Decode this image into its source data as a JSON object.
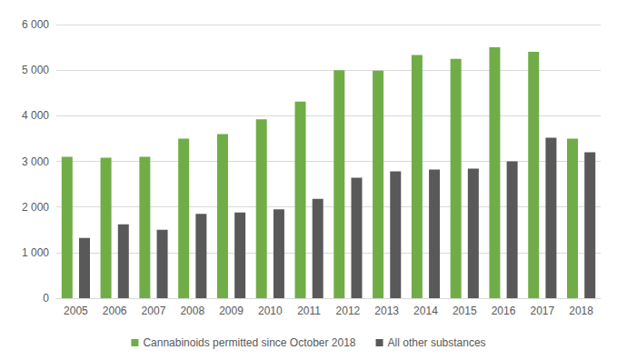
{
  "chart_data": {
    "type": "bar",
    "categories": [
      "2005",
      "2006",
      "2007",
      "2008",
      "2009",
      "2010",
      "2011",
      "2012",
      "2013",
      "2014",
      "2015",
      "2016",
      "2017",
      "2018"
    ],
    "series": [
      {
        "name": "Cannabinoids permitted since October 2018",
        "color": "#70ad47",
        "values": [
          3100,
          3080,
          3100,
          3500,
          3600,
          3920,
          4310,
          5000,
          4990,
          5330,
          5250,
          5500,
          5400,
          3500
        ]
      },
      {
        "name": "All other substances",
        "color": "#595959",
        "values": [
          1320,
          1620,
          1500,
          1850,
          1880,
          1950,
          2180,
          2640,
          2780,
          2820,
          2840,
          3000,
          3520,
          3200
        ]
      }
    ],
    "ylim": [
      0,
      6000
    ],
    "yticks": [
      0,
      {
        "value": 1000,
        "label": "1 000"
      },
      {
        "value": 2000,
        "label": "2 000"
      },
      {
        "value": 3000,
        "label": "3 000"
      },
      {
        "value": 4000,
        "label": "4 000"
      },
      {
        "value": 5000,
        "label": "5 000"
      },
      {
        "value": 6000,
        "label": "6 000"
      }
    ],
    "grid": true,
    "legend": "bottom"
  }
}
